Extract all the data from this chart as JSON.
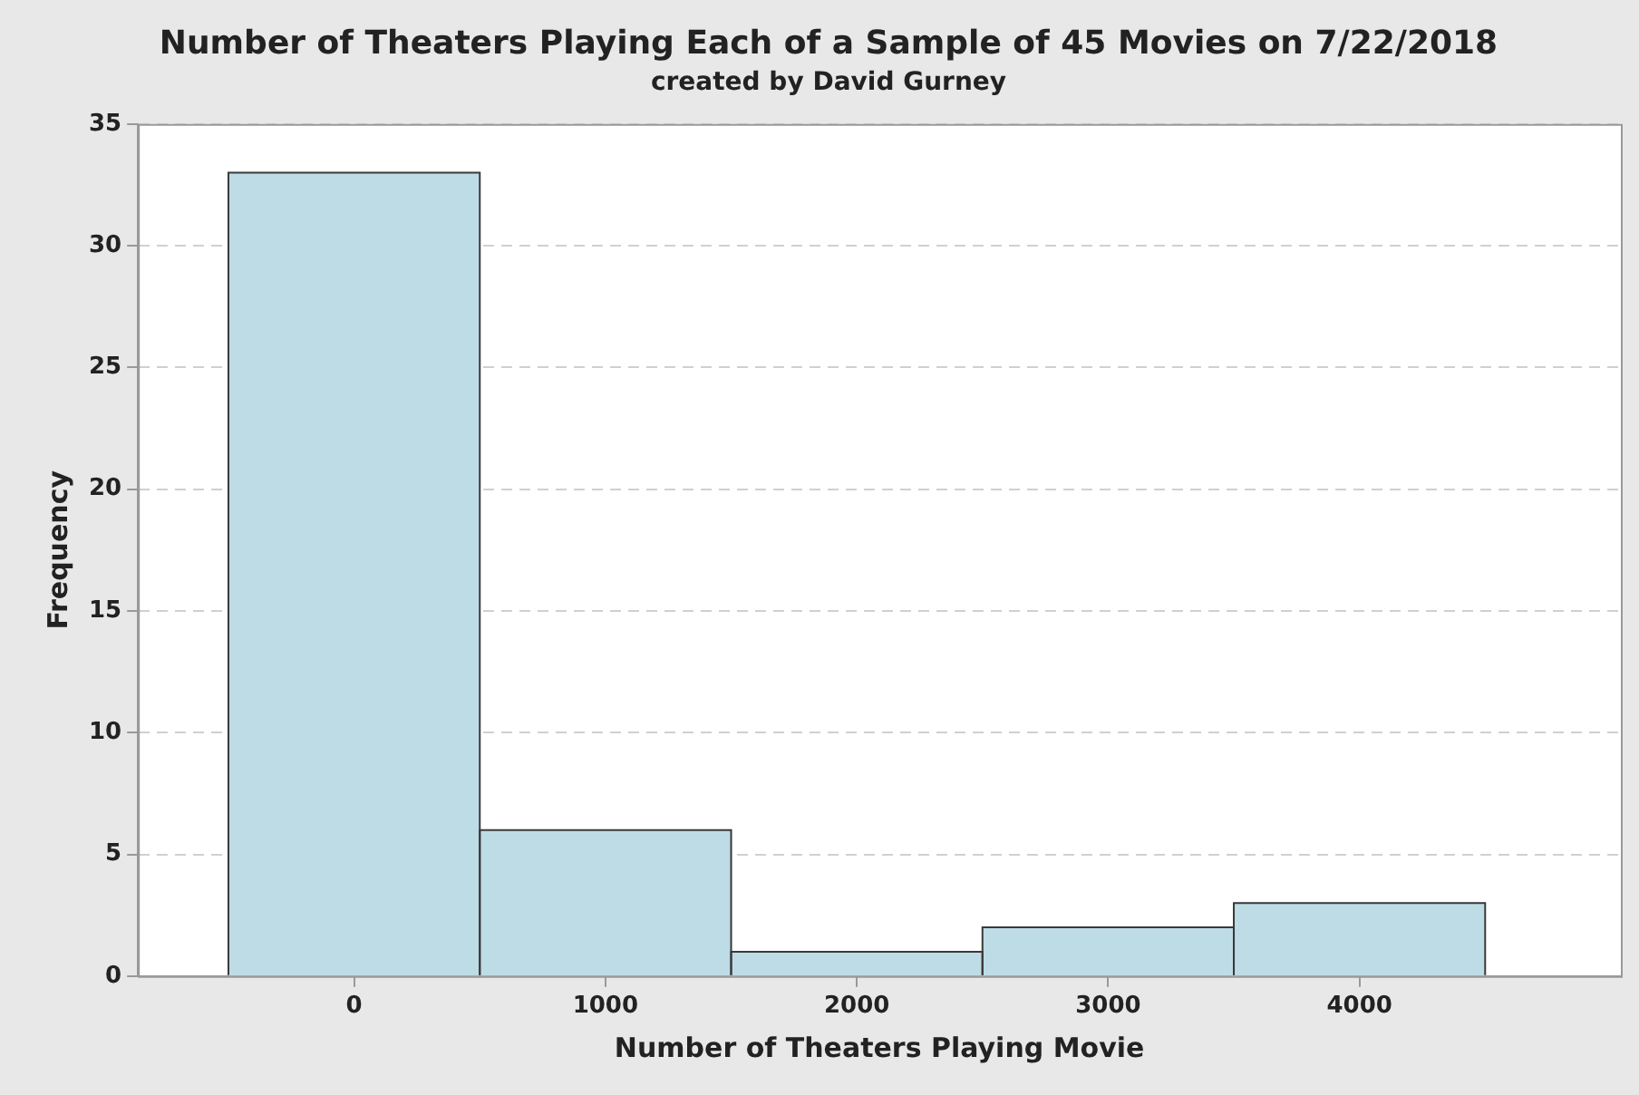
{
  "chart_data": {
    "type": "histogram",
    "title": "Number of Theaters Playing Each of a Sample of 45 Movies on 7/22/2018",
    "subtitle": "created by David Gurney",
    "xlabel": "Number of Theaters Playing Movie",
    "ylabel": "Frequency",
    "bins": [
      -500,
      500,
      1500,
      2500,
      3500,
      4500
    ],
    "values": [
      33,
      6,
      1,
      2,
      3
    ],
    "color": "#bedce6",
    "xlim": [
      -860,
      5040
    ],
    "xticks": [
      0,
      1000,
      2000,
      3000,
      4000
    ],
    "ylim": [
      0,
      35
    ],
    "yticks": [
      0,
      5,
      10,
      15,
      20,
      25,
      30,
      35
    ],
    "grid": "y",
    "legend": false
  }
}
